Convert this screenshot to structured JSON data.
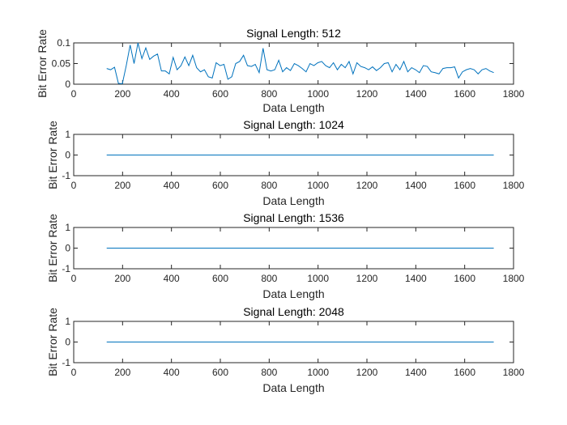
{
  "chart_data": [
    {
      "type": "line",
      "title": "Signal Length: 512",
      "xlabel": "Data Length",
      "ylabel": "Bit Error Rate",
      "xlim": [
        0,
        1800
      ],
      "ylim": [
        0,
        0.1
      ],
      "xticks": [
        0,
        200,
        400,
        600,
        800,
        1000,
        1200,
        1400,
        1600,
        1800
      ],
      "yticks": [
        0,
        0.05,
        0.1
      ],
      "ytick_labels": [
        "0",
        "0.05",
        "0.1"
      ],
      "grid": false,
      "color": "#0072BD",
      "series": [
        {
          "x": [
            135,
            151,
            167,
            183,
            199,
            215,
            231,
            247,
            263,
            279,
            295,
            311,
            327,
            343,
            359,
            375,
            391,
            407,
            423,
            439,
            455,
            471,
            487,
            503,
            519,
            535,
            551,
            567,
            583,
            599,
            615,
            631,
            647,
            663,
            679,
            695,
            711,
            727,
            743,
            759,
            775,
            791,
            807,
            823,
            839,
            855,
            871,
            887,
            903,
            919,
            935,
            951,
            967,
            983,
            999,
            1015,
            1031,
            1047,
            1063,
            1079,
            1095,
            1111,
            1127,
            1143,
            1159,
            1175,
            1191,
            1207,
            1223,
            1239,
            1255,
            1271,
            1287,
            1303,
            1319,
            1335,
            1351,
            1367,
            1383,
            1399,
            1415,
            1431,
            1447,
            1463,
            1479,
            1495,
            1511,
            1527,
            1543,
            1559,
            1575,
            1591,
            1607,
            1623,
            1639,
            1655,
            1671,
            1687,
            1703,
            1719
          ],
          "y": [
            0.038,
            0.035,
            0.041,
            0.002,
            0.001,
            0.045,
            0.095,
            0.05,
            0.1,
            0.062,
            0.088,
            0.06,
            0.068,
            0.073,
            0.032,
            0.032,
            0.025,
            0.065,
            0.035,
            0.045,
            0.066,
            0.045,
            0.07,
            0.04,
            0.03,
            0.035,
            0.018,
            0.015,
            0.052,
            0.045,
            0.048,
            0.012,
            0.018,
            0.05,
            0.055,
            0.07,
            0.045,
            0.043,
            0.048,
            0.028,
            0.087,
            0.035,
            0.032,
            0.035,
            0.058,
            0.03,
            0.04,
            0.033,
            0.05,
            0.045,
            0.038,
            0.03,
            0.05,
            0.045,
            0.052,
            0.055,
            0.045,
            0.04,
            0.052,
            0.035,
            0.048,
            0.04,
            0.055,
            0.025,
            0.052,
            0.043,
            0.04,
            0.035,
            0.042,
            0.033,
            0.04,
            0.05,
            0.052,
            0.03,
            0.048,
            0.035,
            0.055,
            0.03,
            0.04,
            0.035,
            0.028,
            0.045,
            0.043,
            0.03,
            0.028,
            0.025,
            0.038,
            0.04,
            0.04,
            0.042,
            0.015,
            0.03,
            0.035,
            0.038,
            0.035,
            0.025,
            0.035,
            0.038,
            0.032,
            0.028
          ]
        }
      ]
    },
    {
      "type": "line",
      "title": "Signal Length: 1024",
      "xlabel": "Data Length",
      "ylabel": "Bit Error Rate",
      "xlim": [
        0,
        1800
      ],
      "ylim": [
        -1,
        1
      ],
      "xticks": [
        0,
        200,
        400,
        600,
        800,
        1000,
        1200,
        1400,
        1600,
        1800
      ],
      "yticks": [
        -1,
        0,
        1
      ],
      "ytick_labels": [
        "-1",
        "0",
        "1"
      ],
      "grid": false,
      "color": "#0072BD",
      "series": [
        {
          "x": [
            135,
            1719
          ],
          "y": [
            0,
            0
          ]
        }
      ]
    },
    {
      "type": "line",
      "title": "Signal Length: 1536",
      "xlabel": "Data Length",
      "ylabel": "Bit Error Rate",
      "xlim": [
        0,
        1800
      ],
      "ylim": [
        -1,
        1
      ],
      "xticks": [
        0,
        200,
        400,
        600,
        800,
        1000,
        1200,
        1400,
        1600,
        1800
      ],
      "yticks": [
        -1,
        0,
        1
      ],
      "ytick_labels": [
        "-1",
        "0",
        "1"
      ],
      "grid": false,
      "color": "#0072BD",
      "series": [
        {
          "x": [
            135,
            1719
          ],
          "y": [
            0,
            0
          ]
        }
      ]
    },
    {
      "type": "line",
      "title": "Signal Length: 2048",
      "xlabel": "Data Length",
      "ylabel": "Bit Error Rate",
      "xlim": [
        0,
        1800
      ],
      "ylim": [
        -1,
        1
      ],
      "xticks": [
        0,
        200,
        400,
        600,
        800,
        1000,
        1200,
        1400,
        1600,
        1800
      ],
      "yticks": [
        -1,
        0,
        1
      ],
      "ytick_labels": [
        "-1",
        "0",
        "1"
      ],
      "grid": false,
      "color": "#0072BD",
      "series": [
        {
          "x": [
            135,
            1719
          ],
          "y": [
            0,
            0
          ]
        }
      ]
    }
  ]
}
